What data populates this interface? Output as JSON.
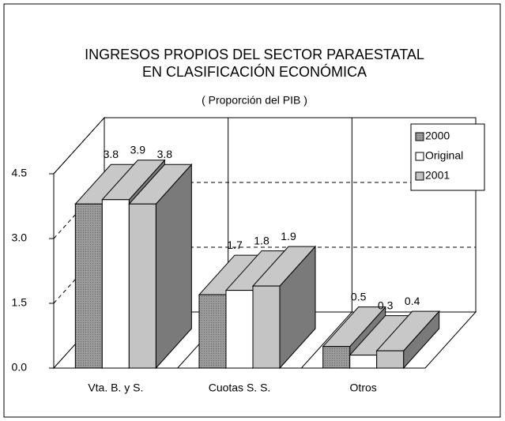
{
  "chart_data": {
    "type": "bar3d",
    "title": [
      "INGRESOS PROPIOS DEL SECTOR PARAESTATAL",
      "EN CLASIFICACIÓN ECONÓMICA"
    ],
    "subtitle": "( Proporción del PIB )",
    "categories": [
      "Vta. B. y S.",
      "Cuotas S. S.",
      "Otros"
    ],
    "series": [
      {
        "name": "2000",
        "color": "#9a9a9a",
        "values": [
          3.8,
          1.7,
          0.5
        ]
      },
      {
        "name": "Original",
        "color": "#ffffff",
        "values": [
          3.9,
          1.8,
          0.3
        ]
      },
      {
        "name": "2001",
        "color": "#c4c4c4",
        "values": [
          3.8,
          1.9,
          0.4
        ]
      }
    ],
    "ylim": [
      0,
      4.5
    ],
    "yticks": [
      {
        "value": 0,
        "label": "0.0"
      },
      1.5,
      {
        "value": 3,
        "label": "3.0"
      },
      4.5
    ],
    "grid": true,
    "legend": "upper right"
  }
}
